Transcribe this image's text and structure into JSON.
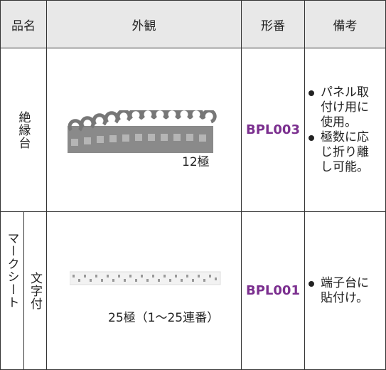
{
  "table": {
    "headers": [
      "品名",
      "外観",
      "形番",
      "備考"
    ],
    "rows": [
      {
        "name": "絶縁台",
        "caption": "12極",
        "model": "BPL003",
        "notes": [
          "パネル取付け用に使用。",
          "極数に応じ折り離し可能。"
        ]
      },
      {
        "name": "マークシート",
        "subname": "文字付",
        "caption": "25極（1〜25連番）",
        "model": "BPL001",
        "notes": [
          "端子台に貼付け。"
        ]
      }
    ]
  }
}
